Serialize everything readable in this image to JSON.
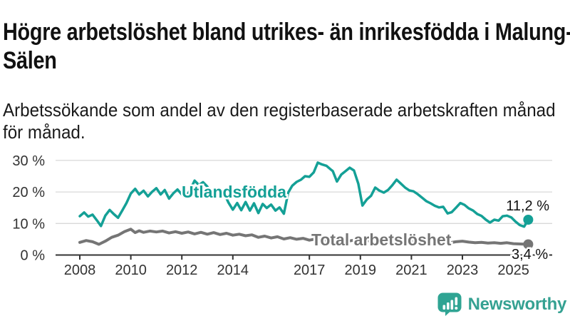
{
  "header": {
    "title": "Högre arbetslöshet bland utrikes- än inrikesfödda i Malung-Sälen",
    "subtitle": "Arbetssökande som andel av den registerbaserade arbetskraften månad för månad."
  },
  "footer": {
    "brand": "Newsworthy",
    "brand_color": "#35a192",
    "logo_icon": "bar-chart-speech-bubble-icon",
    "logo_color": "#2fa493"
  },
  "chart_data": {
    "type": "line",
    "unit": "%",
    "grid": true,
    "legend_position": "inline-labels",
    "y_ticks": [
      "0 %",
      "10 %",
      "20 %",
      "30 %"
    ],
    "y_tick_values": [
      0,
      10,
      20,
      30
    ],
    "ylim": [
      0,
      32
    ],
    "x_ticks": [
      2008,
      2010,
      2012,
      2014,
      2017,
      2019,
      2021,
      2023,
      2025
    ],
    "xlim": [
      2007.8,
      2026.3
    ],
    "axis_color": "#333333",
    "grid_color": "#d9d9d9",
    "series": [
      {
        "name": "Utlandsfödda",
        "color": "#14a096",
        "end_label": "11,2 %",
        "end_value": 11.2,
        "points": [
          [
            2008.0,
            12.3
          ],
          [
            2008.17,
            13.5
          ],
          [
            2008.33,
            12.2
          ],
          [
            2008.5,
            12.8
          ],
          [
            2008.67,
            11.0
          ],
          [
            2008.83,
            9.2
          ],
          [
            2009.0,
            12.5
          ],
          [
            2009.17,
            14.3
          ],
          [
            2009.33,
            13.0
          ],
          [
            2009.5,
            11.8
          ],
          [
            2009.67,
            14.2
          ],
          [
            2009.83,
            16.5
          ],
          [
            2010.0,
            19.5
          ],
          [
            2010.17,
            21.0
          ],
          [
            2010.33,
            19.2
          ],
          [
            2010.5,
            20.4
          ],
          [
            2010.67,
            18.6
          ],
          [
            2010.83,
            20.0
          ],
          [
            2011.0,
            21.2
          ],
          [
            2011.17,
            19.2
          ],
          [
            2011.33,
            20.6
          ],
          [
            2011.5,
            17.9
          ],
          [
            2011.67,
            19.6
          ],
          [
            2011.83,
            20.8
          ],
          [
            2012.0,
            19.2
          ],
          [
            2012.17,
            18.4
          ],
          [
            2012.33,
            20.7
          ],
          [
            2012.5,
            23.6
          ],
          [
            2012.67,
            22.2
          ],
          [
            2012.83,
            23.1
          ],
          [
            2013.0,
            21.7
          ],
          [
            2013.17,
            18.2
          ],
          [
            2013.33,
            19.9
          ],
          [
            2013.5,
            18.1
          ],
          [
            2013.67,
            19.4
          ],
          [
            2013.83,
            16.6
          ],
          [
            2014.0,
            14.4
          ],
          [
            2014.17,
            16.5
          ],
          [
            2014.33,
            14.2
          ],
          [
            2014.5,
            16.8
          ],
          [
            2014.67,
            14.1
          ],
          [
            2014.83,
            16.4
          ],
          [
            2015.0,
            13.3
          ],
          [
            2015.17,
            16.2
          ],
          [
            2015.33,
            14.9
          ],
          [
            2015.5,
            16.0
          ],
          [
            2015.67,
            14.1
          ],
          [
            2015.83,
            15.1
          ],
          [
            2016.0,
            13.1
          ],
          [
            2016.17,
            19.8
          ],
          [
            2016.33,
            22.0
          ],
          [
            2016.5,
            23.2
          ],
          [
            2016.67,
            23.9
          ],
          [
            2016.83,
            25.0
          ],
          [
            2017.0,
            24.8
          ],
          [
            2017.17,
            26.2
          ],
          [
            2017.33,
            29.3
          ],
          [
            2017.5,
            28.7
          ],
          [
            2017.67,
            28.3
          ],
          [
            2017.83,
            27.2
          ],
          [
            2017.92,
            26.6
          ],
          [
            2018.08,
            23.3
          ],
          [
            2018.25,
            25.5
          ],
          [
            2018.42,
            26.6
          ],
          [
            2018.58,
            27.7
          ],
          [
            2018.75,
            26.8
          ],
          [
            2018.92,
            22.6
          ],
          [
            2019.08,
            15.7
          ],
          [
            2019.25,
            17.6
          ],
          [
            2019.42,
            18.8
          ],
          [
            2019.58,
            21.4
          ],
          [
            2019.75,
            20.4
          ],
          [
            2019.92,
            19.8
          ],
          [
            2020.08,
            20.6
          ],
          [
            2020.25,
            22.1
          ],
          [
            2020.42,
            23.9
          ],
          [
            2020.58,
            22.7
          ],
          [
            2020.75,
            21.4
          ],
          [
            2020.92,
            20.5
          ],
          [
            2021.08,
            20.2
          ],
          [
            2021.25,
            19.3
          ],
          [
            2021.42,
            18.2
          ],
          [
            2021.58,
            17.1
          ],
          [
            2021.75,
            16.4
          ],
          [
            2021.92,
            15.6
          ],
          [
            2022.08,
            15.1
          ],
          [
            2022.25,
            15.3
          ],
          [
            2022.42,
            13.2
          ],
          [
            2022.58,
            13.6
          ],
          [
            2022.75,
            15.0
          ],
          [
            2022.92,
            16.5
          ],
          [
            2023.08,
            15.9
          ],
          [
            2023.25,
            14.8
          ],
          [
            2023.42,
            14.1
          ],
          [
            2023.58,
            13.0
          ],
          [
            2023.75,
            12.4
          ],
          [
            2023.92,
            11.2
          ],
          [
            2024.08,
            10.3
          ],
          [
            2024.25,
            11.2
          ],
          [
            2024.42,
            10.9
          ],
          [
            2024.58,
            12.3
          ],
          [
            2024.75,
            12.5
          ],
          [
            2024.92,
            11.9
          ],
          [
            2025.08,
            10.6
          ],
          [
            2025.25,
            9.5
          ],
          [
            2025.42,
            9.0
          ],
          [
            2025.58,
            11.2
          ]
        ]
      },
      {
        "name": "Total arbetslöshet",
        "color": "#757575",
        "end_label": "3,4 %",
        "end_value": 3.4,
        "points": [
          [
            2008.0,
            4.0
          ],
          [
            2008.25,
            4.6
          ],
          [
            2008.5,
            4.2
          ],
          [
            2008.75,
            3.4
          ],
          [
            2009.0,
            4.4
          ],
          [
            2009.25,
            5.6
          ],
          [
            2009.5,
            6.3
          ],
          [
            2009.75,
            7.4
          ],
          [
            2010.0,
            8.2
          ],
          [
            2010.17,
            7.1
          ],
          [
            2010.33,
            7.7
          ],
          [
            2010.5,
            7.2
          ],
          [
            2010.75,
            7.6
          ],
          [
            2011.0,
            7.3
          ],
          [
            2011.25,
            7.6
          ],
          [
            2011.5,
            7.0
          ],
          [
            2011.75,
            7.4
          ],
          [
            2012.0,
            6.9
          ],
          [
            2012.25,
            7.3
          ],
          [
            2012.5,
            6.7
          ],
          [
            2012.75,
            7.2
          ],
          [
            2013.0,
            6.6
          ],
          [
            2013.25,
            7.1
          ],
          [
            2013.5,
            6.5
          ],
          [
            2013.75,
            6.9
          ],
          [
            2014.0,
            6.3
          ],
          [
            2014.25,
            6.6
          ],
          [
            2014.5,
            6.1
          ],
          [
            2014.75,
            6.4
          ],
          [
            2015.0,
            5.6
          ],
          [
            2015.25,
            6.0
          ],
          [
            2015.5,
            5.4
          ],
          [
            2015.75,
            5.8
          ],
          [
            2016.0,
            5.1
          ],
          [
            2016.25,
            5.5
          ],
          [
            2016.5,
            5.0
          ],
          [
            2016.75,
            5.3
          ],
          [
            2017.0,
            4.7
          ],
          [
            2017.25,
            5.1
          ],
          [
            2017.5,
            4.6
          ],
          [
            2017.75,
            4.9
          ],
          [
            2018.0,
            4.4
          ],
          [
            2018.25,
            4.8
          ],
          [
            2018.5,
            4.4
          ],
          [
            2018.75,
            4.7
          ],
          [
            2019.0,
            4.2
          ],
          [
            2019.25,
            4.6
          ],
          [
            2019.5,
            4.3
          ],
          [
            2019.75,
            4.6
          ],
          [
            2020.0,
            4.4
          ],
          [
            2020.25,
            4.9
          ],
          [
            2020.5,
            5.1
          ],
          [
            2020.75,
            4.8
          ],
          [
            2021.0,
            4.6
          ],
          [
            2021.25,
            4.8
          ],
          [
            2021.5,
            4.4
          ],
          [
            2021.75,
            4.5
          ],
          [
            2022.0,
            4.1
          ],
          [
            2022.25,
            4.3
          ],
          [
            2022.5,
            3.9
          ],
          [
            2022.75,
            4.2
          ],
          [
            2023.0,
            4.4
          ],
          [
            2023.25,
            4.1
          ],
          [
            2023.5,
            3.9
          ],
          [
            2023.75,
            4.0
          ],
          [
            2024.0,
            3.8
          ],
          [
            2024.25,
            3.9
          ],
          [
            2024.5,
            3.7
          ],
          [
            2024.75,
            3.9
          ],
          [
            2025.0,
            3.6
          ],
          [
            2025.25,
            3.5
          ],
          [
            2025.58,
            3.4
          ]
        ]
      }
    ]
  }
}
